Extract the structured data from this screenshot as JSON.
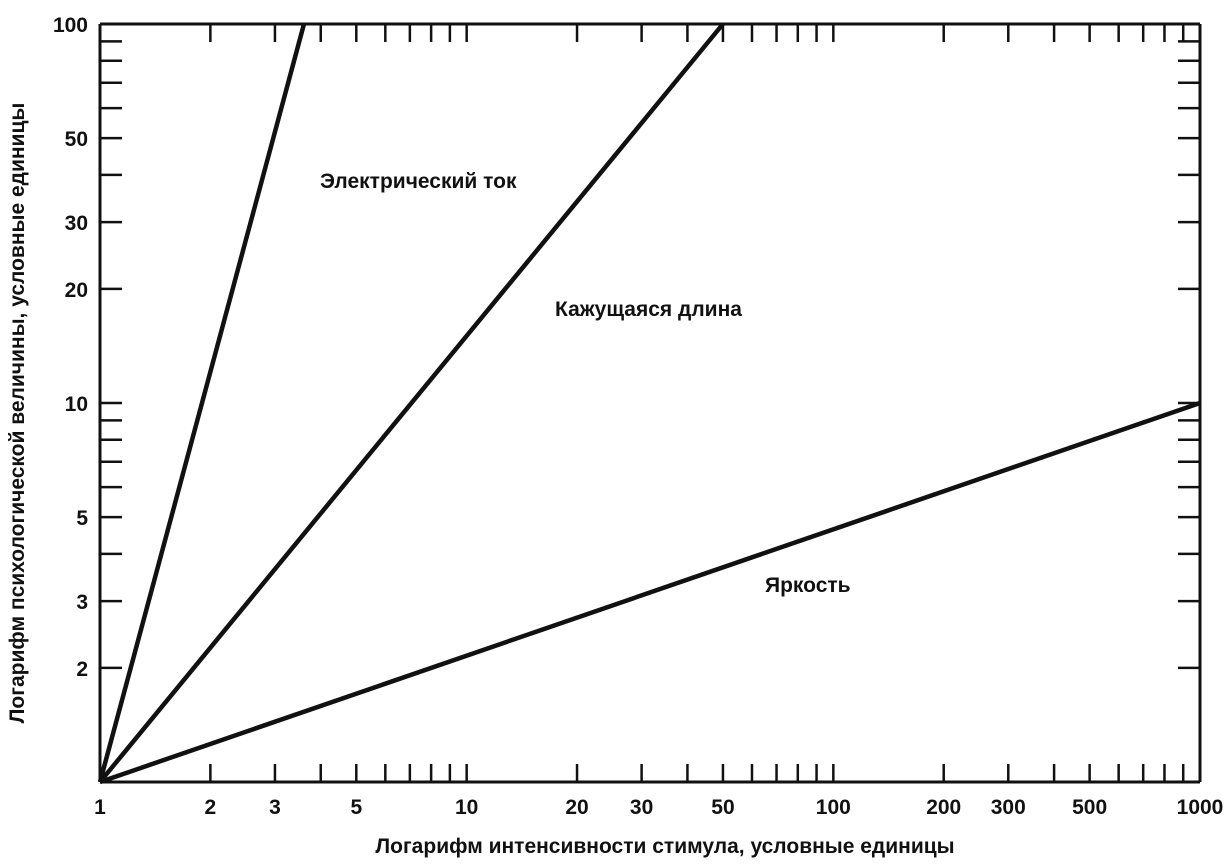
{
  "chart_data": {
    "type": "line",
    "xlabel": "Логарифм интенсивности стимула, условные единицы",
    "ylabel": "Логарифм психологической величины, условные единицы",
    "x_scale": "log",
    "y_scale": "log",
    "xlim": [
      1,
      1000
    ],
    "ylim": [
      1,
      100
    ],
    "x_tick_labels": [
      "1",
      "2",
      "3",
      "5",
      "10",
      "20",
      "30",
      "50",
      "100",
      "200",
      "300",
      "500",
      "1000"
    ],
    "x_tick_values": [
      1,
      2,
      3,
      5,
      10,
      20,
      30,
      50,
      100,
      200,
      300,
      500,
      1000
    ],
    "x_minor_ticks": [
      4,
      6,
      7,
      8,
      9,
      40,
      60,
      70,
      80,
      90,
      400,
      600,
      700,
      800,
      900
    ],
    "y_tick_labels": [
      "2",
      "3",
      "5",
      "10",
      "20",
      "30",
      "50",
      "100"
    ],
    "y_tick_values": [
      2,
      3,
      5,
      10,
      20,
      30,
      50,
      100
    ],
    "y_minor_ticks": [
      4,
      6,
      7,
      8,
      9,
      40,
      60,
      70,
      80,
      90
    ],
    "grid": false,
    "line_color": "#111111",
    "series": [
      {
        "name": "Электрический ток",
        "x": [
          1,
          3.6
        ],
        "y": [
          1,
          100
        ]
      },
      {
        "name": "Кажущаяся длина",
        "x": [
          1,
          50
        ],
        "y": [
          1,
          100
        ]
      },
      {
        "name": "Яркость",
        "x": [
          1,
          1000
        ],
        "y": [
          1,
          10
        ]
      }
    ]
  }
}
